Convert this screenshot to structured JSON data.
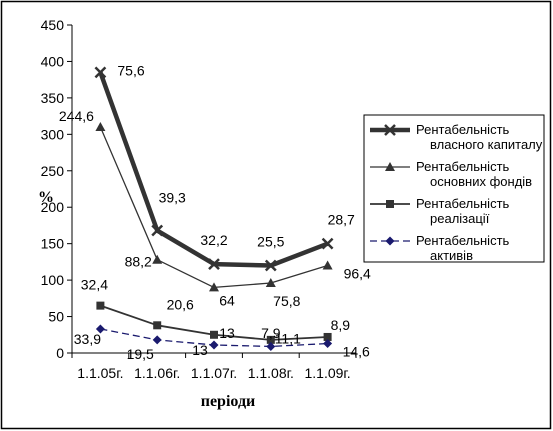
{
  "chart_data": {
    "type": "line",
    "title": "",
    "xlabel": "періоди",
    "ylabel": "%",
    "ylim": [
      0,
      450
    ],
    "yticks": [
      "0",
      "50",
      "100",
      "150",
      "200",
      "250",
      "300",
      "350",
      "400",
      "450"
    ],
    "categories": [
      "1.1.05г.",
      "1.1.06г.",
      "1.1.07г.",
      "1.1.08г.",
      "1.1.09г."
    ],
    "grid": false,
    "legend_position": "right",
    "series": [
      {
        "name": "Рентабельність власного капиталу",
        "values": [
          385,
          168,
          122,
          120,
          150
        ],
        "labels": [
          "75,6",
          "39,3",
          "32,2",
          "25,5",
          "28,7"
        ],
        "color": "#333333",
        "marker": "x",
        "style": "thick"
      },
      {
        "name": "Рентабельність основних фондів",
        "values": [
          310,
          128,
          90,
          96,
          120
        ],
        "labels": [
          "244,6",
          "88,2",
          "64",
          "75,8",
          "96,4"
        ],
        "color": "#333333",
        "marker": "triangle",
        "style": "thin"
      },
      {
        "name": "Рентабельність реалізації",
        "values": [
          65,
          38,
          25,
          18,
          22
        ],
        "labels": [
          "32,4",
          "20,6",
          "13",
          "7,9",
          "8,9"
        ],
        "color": "#333333",
        "marker": "square",
        "style": "medium"
      },
      {
        "name": "Рентабельність активів",
        "values": [
          33,
          18,
          11,
          9,
          13
        ],
        "labels": [
          "33,9",
          "19,5",
          "13",
          "11,1",
          "14,6"
        ],
        "color": "#1a1a6e",
        "marker": "diamond",
        "style": "dashed"
      }
    ]
  },
  "legend": {
    "entries": [
      {
        "line1": "Рентабельність",
        "line2": "власного капиталу"
      },
      {
        "line1": "Рентабельність",
        "line2": "основних фондів"
      },
      {
        "line1": "Рентабельність",
        "line2": "реалізації"
      },
      {
        "line1": "Рентабельність",
        "line2": "активів"
      }
    ]
  }
}
